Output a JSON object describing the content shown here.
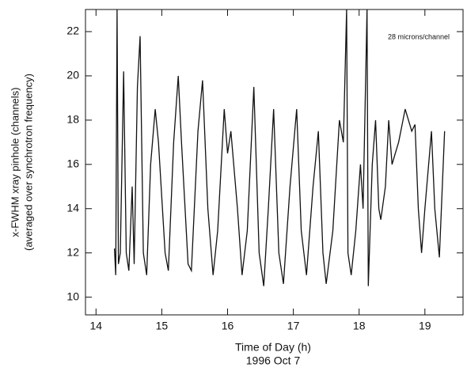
{
  "chart_data": {
    "type": "line",
    "annotation": "28 microns/channel",
    "y_label": [
      "x-FWHM xray pinhole (channels)",
      "(averaged over synchrotron frequency)"
    ],
    "x_label": [
      "Time of Day (h)",
      "1996 Oct 7"
    ],
    "xlim": [
      13.84,
      19.58
    ],
    "xticks": [
      14,
      15,
      16,
      17,
      18,
      19
    ],
    "ylim": [
      9.2,
      23
    ],
    "yticks": [
      10,
      12,
      14,
      16,
      18,
      20,
      22
    ],
    "series": [
      {
        "color": "#111111",
        "x": [
          14.28,
          14.3,
          14.32,
          14.34,
          14.37,
          14.42,
          14.46,
          14.5,
          14.55,
          14.58,
          14.63,
          14.67,
          14.72,
          14.77,
          14.83,
          14.9,
          14.95,
          15.05,
          15.1,
          15.18,
          15.25,
          15.3,
          15.4,
          15.45,
          15.55,
          15.62,
          15.7,
          15.78,
          15.85,
          15.95,
          16.0,
          16.05,
          16.15,
          16.22,
          16.3,
          16.4,
          16.48,
          16.55,
          16.62,
          16.7,
          16.78,
          16.85,
          16.95,
          17.05,
          17.12,
          17.2,
          17.3,
          17.38,
          17.45,
          17.5,
          17.6,
          17.7,
          17.76,
          17.81,
          17.83,
          17.88,
          17.95,
          18.02,
          18.06,
          18.12,
          18.14,
          18.2,
          18.25,
          18.3,
          18.33,
          18.4,
          18.45,
          18.5,
          18.55,
          18.6,
          18.7,
          18.8,
          18.85,
          18.9,
          18.95,
          19.0,
          19.1,
          19.15,
          19.22,
          19.3
        ],
        "values": [
          12.2,
          11.0,
          23,
          11.5,
          12,
          20.2,
          12,
          11.2,
          15,
          11.5,
          19.5,
          21.8,
          12,
          11,
          16,
          18.5,
          17,
          12,
          11.2,
          17,
          20,
          17,
          11.5,
          11.2,
          17.5,
          19.8,
          14,
          11,
          13,
          18.5,
          16.5,
          17.5,
          14,
          11,
          13,
          19.5,
          12,
          10.5,
          14,
          18.5,
          12,
          10.6,
          15,
          18.5,
          13,
          11,
          15,
          17.5,
          12,
          10.6,
          13,
          18,
          17,
          23,
          12,
          11,
          13,
          16,
          14,
          23,
          10.5,
          16,
          18,
          14,
          13.5,
          15,
          18,
          16,
          16.5,
          17,
          18.5,
          17.5,
          17.8,
          14,
          12,
          14,
          17.5,
          14,
          11.8,
          17.5
        ]
      }
    ]
  }
}
